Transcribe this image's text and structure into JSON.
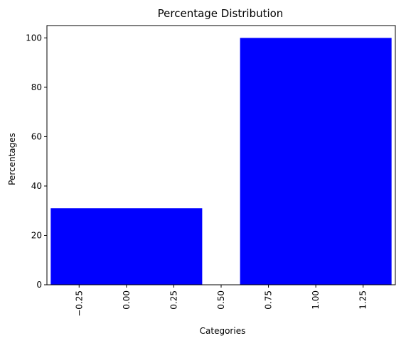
{
  "chart_data": {
    "type": "bar",
    "title": "Percentage Distribution",
    "xlabel": "Categories",
    "ylabel": "Percentages",
    "x": [
      0,
      1
    ],
    "values": [
      31,
      100
    ],
    "bar_width": 0.8,
    "xlim": [
      -0.42,
      1.42
    ],
    "ylim": [
      0,
      105
    ],
    "x_ticks": [
      -0.25,
      0.0,
      0.25,
      0.5,
      0.75,
      1.0,
      1.25
    ],
    "x_tick_labels": [
      "−0.25",
      "0.00",
      "0.25",
      "0.50",
      "0.75",
      "1.00",
      "1.25"
    ],
    "y_ticks": [
      0,
      20,
      40,
      60,
      80,
      100
    ],
    "y_tick_labels": [
      "0",
      "20",
      "40",
      "60",
      "80",
      "100"
    ],
    "grid": false,
    "bar_color": "#0000ff"
  }
}
